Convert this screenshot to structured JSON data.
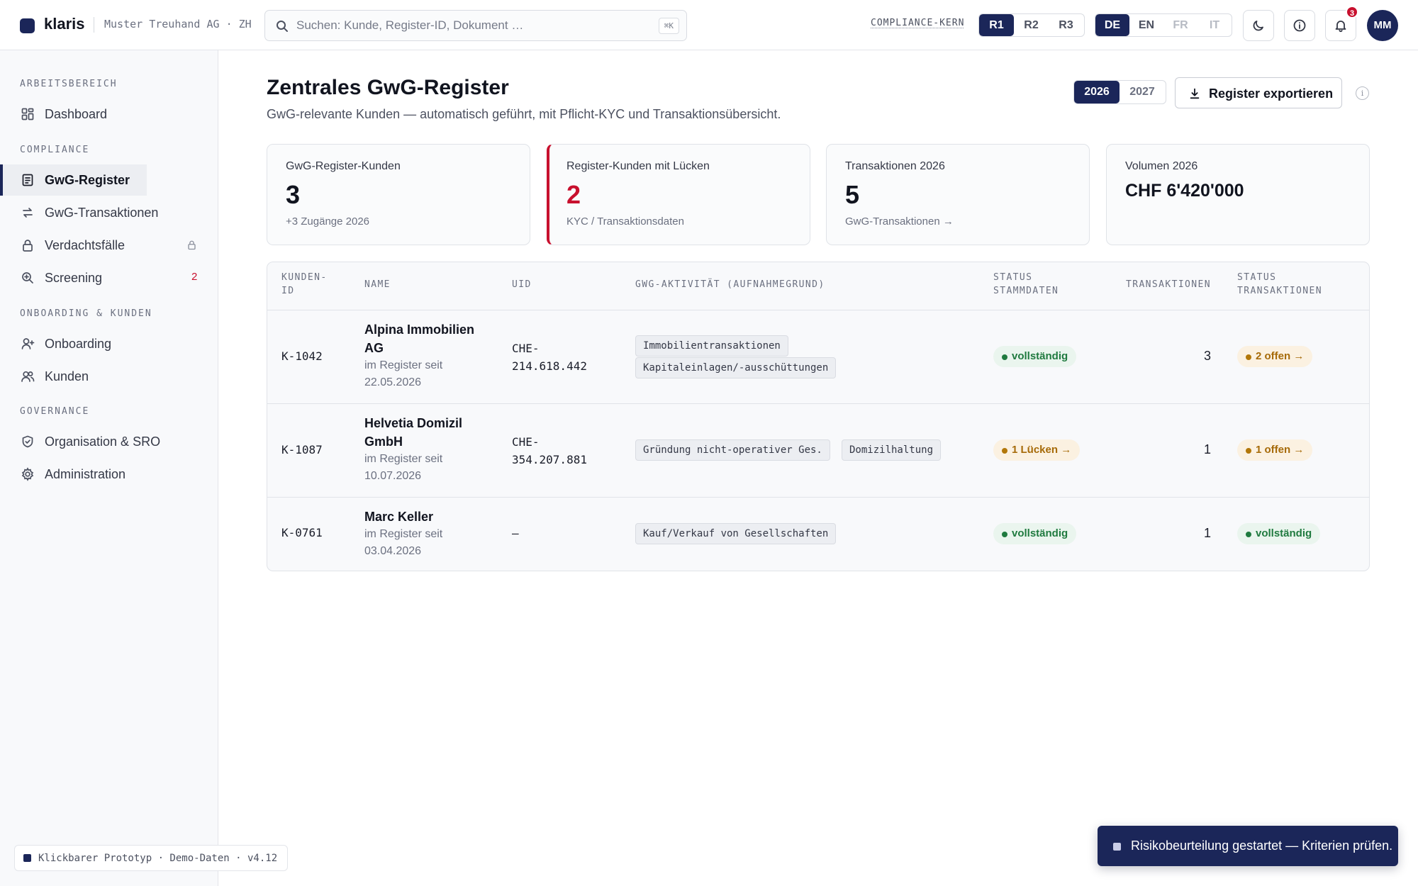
{
  "app": {
    "brand": "klaris",
    "org": "Muster Treuhand AG · ZH"
  },
  "search": {
    "placeholder": "Suchen: Kunde, Register-ID, Dokument …",
    "shortcut": "⌘K"
  },
  "topbar": {
    "compliance_label": "COMPLIANCE-KERN",
    "roles": [
      "R1",
      "R2",
      "R3"
    ],
    "active_role": "R1",
    "languages": [
      "DE",
      "EN",
      "FR",
      "IT"
    ],
    "active_language": "DE",
    "notification_count": "3",
    "user_initials": "MM"
  },
  "sidebar": {
    "sections": {
      "workspace": "ARBEITSBEREICH",
      "compliance": "COMPLIANCE",
      "onboarding": "ONBOARDING & KUNDEN",
      "governance": "GOVERNANCE"
    },
    "items": {
      "dashboard": "Dashboard",
      "register": "GwG-Register",
      "transactions": "GwG-Transaktionen",
      "suspicious": "Verdachtsfälle",
      "screening": "Screening",
      "screening_count": "2",
      "onboarding": "Onboarding",
      "clients": "Kunden",
      "org": "Organisation & SRO",
      "admin": "Administration"
    },
    "footer": "Klickbarer Prototyp · Demo-Daten · v4.12"
  },
  "page": {
    "title": "Zentrales GwG-Register",
    "subtitle": "GwG-relevante Kunden — automatisch geführt, mit Pflicht-KYC und Transaktionsübersicht.",
    "years": [
      "2026",
      "2027"
    ],
    "active_year": "2026",
    "export_label": "Register exportieren",
    "info_glyph": "i"
  },
  "kpis": [
    {
      "label": "GwG-Register-Kunden",
      "value": "3",
      "sub": "+3 Zugänge 2026"
    },
    {
      "label": "Register-Kunden mit Lücken",
      "value": "2",
      "sub": "KYC / Transaktionsdaten"
    },
    {
      "label": "Transaktionen 2026",
      "value": "5",
      "sub": "GwG-Transaktionen →"
    },
    {
      "label": "Volumen 2026",
      "value": "CHF 6'420'000",
      "sub": ""
    }
  ],
  "table": {
    "headers": {
      "client_id": [
        "KUNDEN-",
        "ID"
      ],
      "name": "NAME",
      "uid": "UID",
      "activity": "GWG-AKTIVITÄT (AUFNAHMEGRUND)",
      "master_status": [
        "STATUS",
        "STAMMDATEN"
      ],
      "transactions": "TRANSAKTIONEN",
      "tx_status": [
        "STATUS",
        "TRANSAKTIONEN"
      ]
    },
    "rows": [
      {
        "id": "K-1042",
        "name_lines": [
          "Alpina Immobilien",
          "AG"
        ],
        "since_lines": [
          "im Register seit",
          "22.05.2026"
        ],
        "uid_lines": [
          "CHE-",
          "214.618.442"
        ],
        "tags": [
          "Immobilientransaktionen",
          "Kapitaleinlagen/-ausschüttungen"
        ],
        "master_status": "vollständig",
        "transactions": "3",
        "tx_status": "2 offen →"
      },
      {
        "id": "K-1087",
        "name_lines": [
          "Helvetia Domizil",
          "GmbH"
        ],
        "since_lines": [
          "im Register seit",
          "10.07.2026"
        ],
        "uid_lines": [
          "CHE-",
          "354.207.881"
        ],
        "tags": [
          "Gründung nicht-operativer Ges.",
          "Domizilhaltung"
        ],
        "master_status": "1 Lücken →",
        "transactions": "1",
        "tx_status": "1 offen →"
      },
      {
        "id": "K-0761",
        "name_lines": [
          "Marc Keller"
        ],
        "since_lines": [
          "im Register seit",
          "03.04.2026"
        ],
        "uid_lines": [
          "—"
        ],
        "tags": [
          "Kauf/Verkauf von Gesellschaften"
        ],
        "master_status": "vollständig",
        "transactions": "1",
        "tx_status": "vollständig"
      }
    ]
  },
  "toast": {
    "message": "Risikobeurteilung gestartet — Kriterien prüfen."
  },
  "colors": {
    "brand": "#1b2659",
    "alert": "#c8102e",
    "ok": "#1f7a3f",
    "warn": "#a66a08"
  }
}
